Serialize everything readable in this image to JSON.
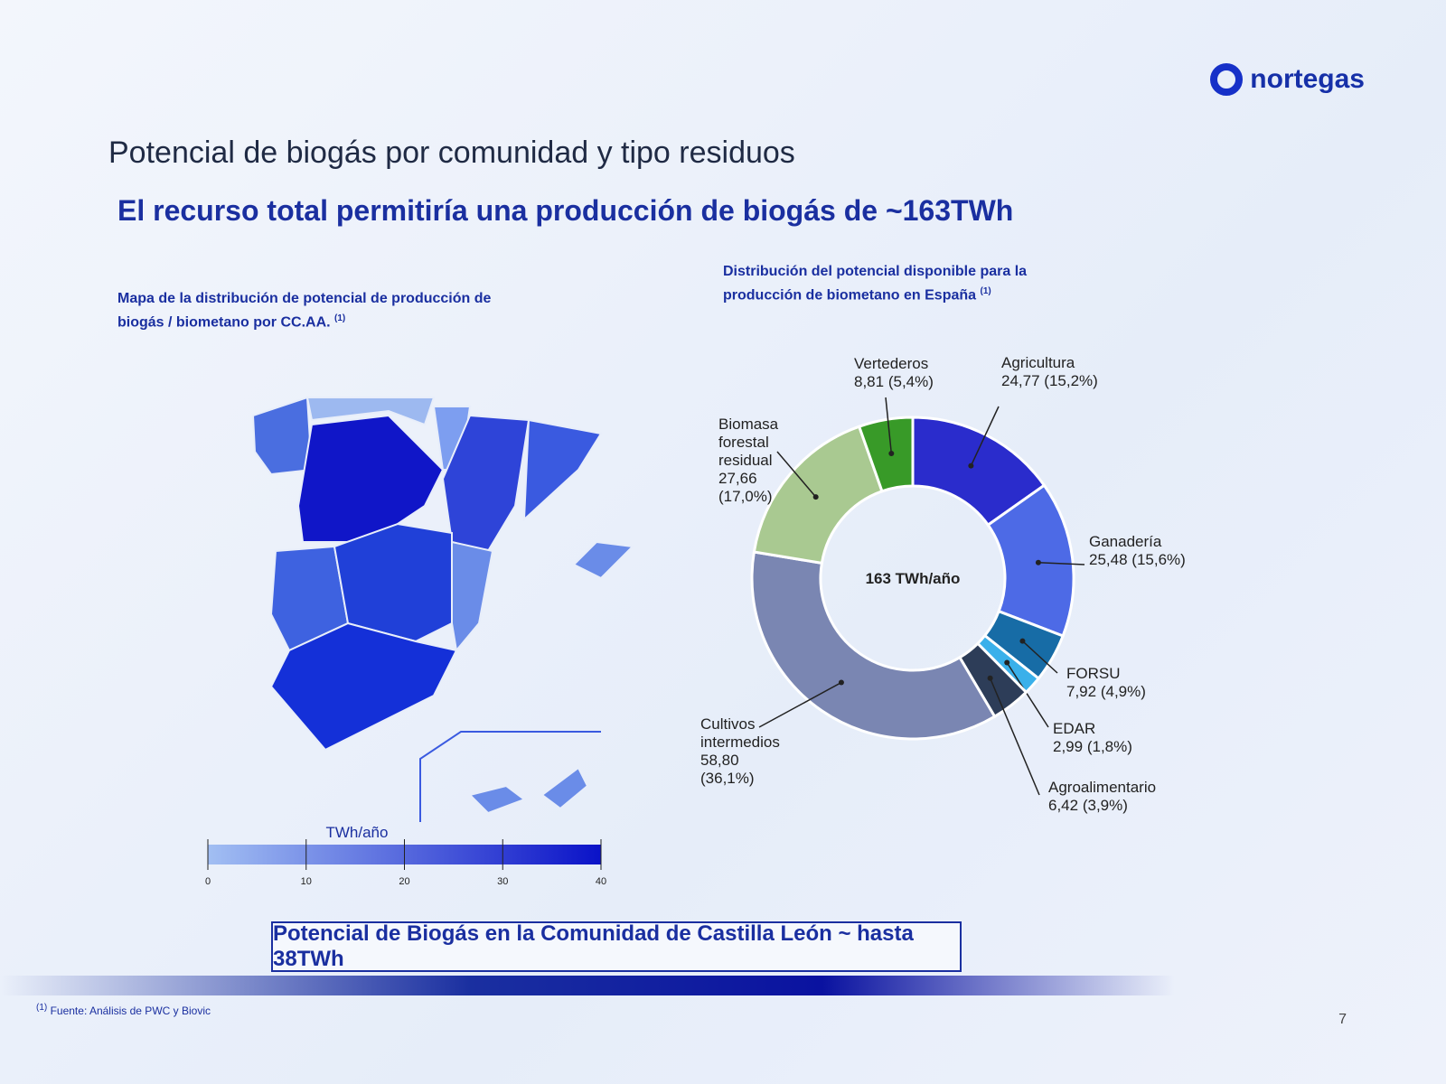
{
  "logo": "nortegas",
  "heading": "Potencial de biogás por comunidad y tipo residuos",
  "subheading": "El recurso total permitiría una producción de biogás de ~163TWh",
  "map_caption": {
    "text": "Mapa de la distribución de potencial de producción de biogás / biometano por CC.AA.",
    "note": "(1)"
  },
  "chart_caption": {
    "text": "Distribución del potencial disponible para la producción de biometano en España",
    "note": "(1)"
  },
  "highlight": "Potencial  de Biogás en la Comunidad de Castilla León ~  hasta 38TWh",
  "footnote": {
    "note": "(1)",
    "text": "Fuente: Análisis de PWC y Biovic"
  },
  "page_number": 7,
  "chart_data": [
    {
      "type": "donut",
      "center_label": "163 TWh/año",
      "categories": [
        "Agricultura",
        "Ganadería",
        "FORSU",
        "EDAR",
        "Agroalimentario",
        "Cultivos intermedios",
        "Biomasa forestal residual",
        "Vertederos"
      ],
      "values": [
        24.77,
        25.48,
        7.92,
        2.99,
        6.42,
        58.8,
        27.66,
        8.81
      ],
      "value_labels": [
        "24,77",
        "25,48",
        "7,92",
        "2,99",
        "6,42",
        "58,80",
        "27,66",
        "8,81"
      ],
      "percents": [
        15.2,
        15.6,
        4.9,
        1.8,
        3.9,
        36.1,
        17.0,
        5.4
      ],
      "percent_labels": [
        "(15,2%)",
        "(15,6%)",
        "(4,9%)",
        "(1,8%)",
        "(3,9%)",
        "(36,1%)",
        "(17,0%)",
        "(5,4%)"
      ],
      "colors": [
        "#2a2ccc",
        "#4d6ae6",
        "#176ca6",
        "#3ab0ea",
        "#2d3d58",
        "#7a86b2",
        "#a9c991",
        "#389a28"
      ]
    },
    {
      "type": "colorbar",
      "title": "TWh/año",
      "xlim": [
        0,
        40
      ],
      "xticks": [
        0,
        10,
        20,
        30,
        40
      ],
      "colors": [
        "#a2bff3",
        "#0a12c8"
      ]
    }
  ]
}
